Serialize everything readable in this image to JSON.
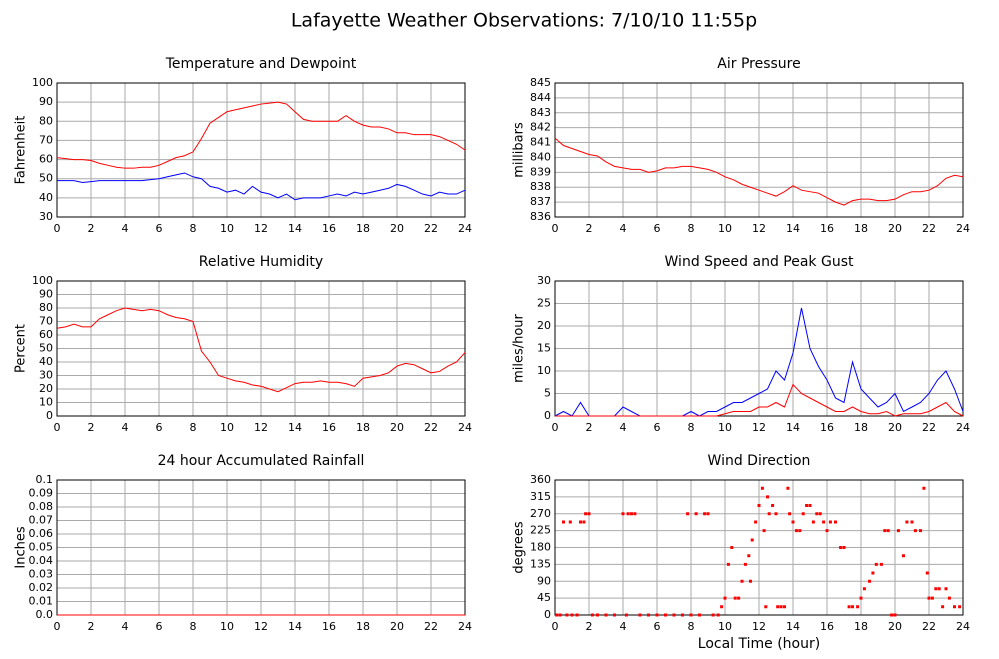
{
  "title": "Lafayette Weather Observations: 7/10/10 11:55p",
  "chart_data": [
    {
      "type": "line",
      "title": "Temperature and Dewpoint",
      "ylabel": "Fahrenheit",
      "x": [
        0,
        0.5,
        1,
        1.5,
        2,
        2.5,
        3,
        3.5,
        4,
        4.5,
        5,
        5.5,
        6,
        6.5,
        7,
        7.5,
        8,
        8.5,
        9,
        9.5,
        10,
        10.5,
        11,
        11.5,
        12,
        12.5,
        13,
        13.5,
        14,
        14.5,
        15,
        15.5,
        16,
        16.5,
        17,
        17.5,
        18,
        18.5,
        19,
        19.5,
        20,
        20.5,
        21,
        21.5,
        22,
        22.5,
        23,
        23.5,
        24
      ],
      "series": [
        {
          "color": "#ff0000",
          "values": [
            61,
            60.5,
            60,
            60,
            59.5,
            58,
            57,
            56,
            55.5,
            55.5,
            56,
            56,
            57,
            59,
            61,
            62,
            64,
            71,
            79,
            82,
            85,
            86,
            87,
            88,
            89,
            89.5,
            90,
            89,
            85,
            81,
            80,
            80,
            80,
            80,
            83,
            80,
            78,
            77,
            77,
            76,
            74,
            74,
            73,
            73,
            73,
            72,
            70,
            68,
            65
          ]
        },
        {
          "color": "#0000ff",
          "values": [
            49,
            49,
            49,
            48,
            48.5,
            49,
            49,
            49,
            49,
            49,
            49,
            49.5,
            50,
            51,
            52,
            53,
            51,
            50,
            46,
            45,
            43,
            44,
            42,
            46,
            43,
            42,
            40,
            42,
            39,
            40,
            40,
            40,
            41,
            42,
            41,
            43,
            42,
            43,
            44,
            45,
            47,
            46,
            44,
            42,
            41,
            43,
            42,
            42,
            44
          ]
        }
      ],
      "xlim": [
        0,
        24
      ],
      "xticks": [
        0,
        2,
        4,
        6,
        8,
        10,
        12,
        14,
        16,
        18,
        20,
        22,
        24
      ],
      "ylim": [
        30,
        100
      ],
      "yticks": [
        30,
        40,
        50,
        60,
        70,
        80,
        90,
        100
      ],
      "grid": true
    },
    {
      "type": "line",
      "title": "Air Pressure",
      "ylabel": "millibars",
      "x": [
        0,
        0.5,
        1,
        1.5,
        2,
        2.5,
        3,
        3.5,
        4,
        4.5,
        5,
        5.5,
        6,
        6.5,
        7,
        7.5,
        8,
        8.5,
        9,
        9.5,
        10,
        10.5,
        11,
        11.5,
        12,
        12.5,
        13,
        13.5,
        14,
        14.5,
        15,
        15.5,
        16,
        16.5,
        17,
        17.5,
        18,
        18.5,
        19,
        19.5,
        20,
        20.5,
        21,
        21.5,
        22,
        22.5,
        23,
        23.5,
        24
      ],
      "series": [
        {
          "color": "#ff0000",
          "values": [
            841.3,
            840.8,
            840.6,
            840.4,
            840.2,
            840.1,
            839.7,
            839.4,
            839.3,
            839.2,
            839.2,
            839,
            839.1,
            839.3,
            839.3,
            839.4,
            839.4,
            839.3,
            839.2,
            839,
            838.7,
            838.5,
            838.2,
            838,
            837.8,
            837.6,
            837.4,
            837.7,
            838.1,
            837.8,
            837.7,
            837.6,
            837.3,
            837,
            836.8,
            837.1,
            837.2,
            837.2,
            837.1,
            837.1,
            837.2,
            837.5,
            837.7,
            837.7,
            837.8,
            838.1,
            838.6,
            838.8,
            838.7
          ]
        }
      ],
      "xlim": [
        0,
        24
      ],
      "xticks": [
        0,
        2,
        4,
        6,
        8,
        10,
        12,
        14,
        16,
        18,
        20,
        22,
        24
      ],
      "ylim": [
        836,
        845
      ],
      "yticks": [
        836,
        837,
        838,
        839,
        840,
        841,
        842,
        843,
        844,
        845
      ],
      "grid": true
    },
    {
      "type": "line",
      "title": "Relative Humidity",
      "ylabel": "Percent",
      "x": [
        0,
        0.5,
        1,
        1.5,
        2,
        2.5,
        3,
        3.5,
        4,
        4.5,
        5,
        5.5,
        6,
        6.5,
        7,
        7.5,
        8,
        8.5,
        9,
        9.5,
        10,
        10.5,
        11,
        11.5,
        12,
        12.5,
        13,
        13.5,
        14,
        14.5,
        15,
        15.5,
        16,
        16.5,
        17,
        17.5,
        18,
        18.5,
        19,
        19.5,
        20,
        20.5,
        21,
        21.5,
        22,
        22.5,
        23,
        23.5,
        24
      ],
      "series": [
        {
          "color": "#ff0000",
          "values": [
            65,
            66,
            68,
            66,
            66,
            72,
            75,
            78,
            80,
            79,
            78,
            79,
            78,
            75,
            73,
            72,
            70,
            48,
            40,
            30,
            28,
            26,
            25,
            23,
            22,
            20,
            18,
            21,
            24,
            25,
            25,
            26,
            25,
            25,
            24,
            22,
            28,
            29,
            30,
            32,
            37,
            39,
            38,
            35,
            32,
            33,
            37,
            40,
            47
          ]
        }
      ],
      "xlim": [
        0,
        24
      ],
      "xticks": [
        0,
        2,
        4,
        6,
        8,
        10,
        12,
        14,
        16,
        18,
        20,
        22,
        24
      ],
      "ylim": [
        0,
        100
      ],
      "yticks": [
        0,
        10,
        20,
        30,
        40,
        50,
        60,
        70,
        80,
        90,
        100
      ],
      "grid": true
    },
    {
      "type": "line",
      "title": "Wind Speed and Peak Gust",
      "ylabel": "miles/hour",
      "x": [
        0,
        0.5,
        1,
        1.5,
        2,
        2.5,
        3,
        3.5,
        4,
        4.5,
        5,
        5.5,
        6,
        6.5,
        7,
        7.5,
        8,
        8.5,
        9,
        9.5,
        10,
        10.5,
        11,
        11.5,
        12,
        12.5,
        13,
        13.5,
        14,
        14.5,
        15,
        15.5,
        16,
        16.5,
        17,
        17.5,
        18,
        18.5,
        19,
        19.5,
        20,
        20.5,
        21,
        21.5,
        22,
        22.5,
        23,
        23.5,
        24
      ],
      "series": [
        {
          "color": "#0000ff",
          "values": [
            0,
            1,
            0,
            3,
            0,
            0,
            0,
            0,
            2,
            1,
            0,
            0,
            0,
            0,
            0,
            0,
            1,
            0,
            1,
            1,
            2,
            3,
            3,
            4,
            5,
            6,
            10,
            8,
            14,
            24,
            15,
            11,
            8,
            4,
            3,
            12,
            6,
            4,
            2,
            3,
            5,
            1,
            2,
            3,
            5,
            8,
            10,
            6,
            1
          ]
        },
        {
          "color": "#ff0000",
          "values": [
            0,
            0,
            0,
            0,
            0,
            0,
            0,
            0,
            0,
            0,
            0,
            0,
            0,
            0,
            0,
            0,
            0,
            0,
            0,
            0,
            0.5,
            1,
            1,
            1,
            2,
            2,
            3,
            2,
            7,
            5,
            4,
            3,
            2,
            1,
            1,
            2,
            1,
            0.5,
            0.5,
            1,
            0,
            0.5,
            0.5,
            0.5,
            1,
            2,
            3,
            1,
            0
          ]
        }
      ],
      "xlim": [
        0,
        24
      ],
      "xticks": [
        0,
        2,
        4,
        6,
        8,
        10,
        12,
        14,
        16,
        18,
        20,
        22,
        24
      ],
      "ylim": [
        0,
        30
      ],
      "yticks": [
        0,
        5,
        10,
        15,
        20,
        25,
        30
      ],
      "grid": true
    },
    {
      "type": "line",
      "title": "24 hour Accumulated Rainfall",
      "ylabel": "Inches",
      "x": [
        0,
        24
      ],
      "series": [
        {
          "color": "#ff0000",
          "values": [
            0,
            0
          ]
        }
      ],
      "xlim": [
        0,
        24
      ],
      "xticks": [
        0,
        2,
        4,
        6,
        8,
        10,
        12,
        14,
        16,
        18,
        20,
        22,
        24
      ],
      "ylim": [
        0,
        0.1
      ],
      "yticks": [
        {
          "value": 0,
          "label": "0.0"
        },
        0.01,
        0.02,
        0.03,
        0.04,
        0.05,
        0.06,
        0.07,
        0.08,
        0.09,
        0.1
      ],
      "grid": true
    },
    {
      "type": "scatter",
      "title": "Wind Direction",
      "ylabel": "degrees",
      "xlabel": "Local Time (hour)",
      "x": [
        0.1,
        0.3,
        0.5,
        0.7,
        0.9,
        1,
        1.3,
        1.5,
        1.7,
        1.8,
        2,
        2.2,
        2.5,
        3,
        3.5,
        4,
        4.2,
        4.3,
        4.5,
        4.7,
        5,
        5.5,
        6,
        6.5,
        7,
        7.5,
        7.8,
        8,
        8.3,
        8.5,
        8.8,
        9,
        9.3,
        9.6,
        9.8,
        10,
        10.2,
        10.4,
        10.6,
        10.8,
        11,
        11.2,
        11.4,
        11.5,
        11.6,
        11.8,
        12,
        12.2,
        12.3,
        12.4,
        12.5,
        12.6,
        12.8,
        13,
        13.1,
        13.3,
        13.5,
        13.7,
        13.8,
        14,
        14.2,
        14.4,
        14.6,
        14.8,
        15,
        15.2,
        15.4,
        15.6,
        15.8,
        16,
        16.2,
        16.5,
        16.8,
        17,
        17.3,
        17.5,
        17.8,
        18,
        18.2,
        18.5,
        18.7,
        18.9,
        19.2,
        19.4,
        19.6,
        19.8,
        20,
        20.2,
        20.5,
        20.7,
        21,
        21.2,
        21.5,
        21.7,
        21.9,
        22,
        22.2,
        22.4,
        22.6,
        22.8,
        23,
        23.2,
        23.5,
        23.8
      ],
      "series": [
        {
          "color": "#ff0000",
          "values": [
            0,
            0,
            248,
            0,
            248,
            0,
            0,
            248,
            248,
            270,
            270,
            0,
            0,
            0,
            0,
            270,
            0,
            270,
            270,
            270,
            0,
            0,
            0,
            0,
            0,
            0,
            270,
            0,
            270,
            0,
            270,
            270,
            0,
            0,
            22,
            45,
            135,
            180,
            45,
            45,
            90,
            135,
            158,
            90,
            200,
            248,
            292,
            338,
            225,
            22,
            315,
            270,
            292,
            270,
            22,
            22,
            22,
            338,
            270,
            248,
            225,
            225,
            270,
            292,
            292,
            248,
            270,
            270,
            248,
            225,
            248,
            248,
            180,
            180,
            22,
            22,
            22,
            45,
            70,
            90,
            112,
            135,
            135,
            225,
            225,
            0,
            0,
            225,
            158,
            248,
            248,
            225,
            225,
            338,
            112,
            45,
            45,
            70,
            70,
            22,
            70,
            45,
            22,
            22
          ]
        }
      ],
      "xlim": [
        0,
        24
      ],
      "xticks": [
        0,
        2,
        4,
        6,
        8,
        10,
        12,
        14,
        16,
        18,
        20,
        22,
        24
      ],
      "ylim": [
        0,
        360
      ],
      "yticks": [
        0,
        45,
        90,
        135,
        180,
        225,
        270,
        315,
        360
      ],
      "grid": true
    }
  ]
}
